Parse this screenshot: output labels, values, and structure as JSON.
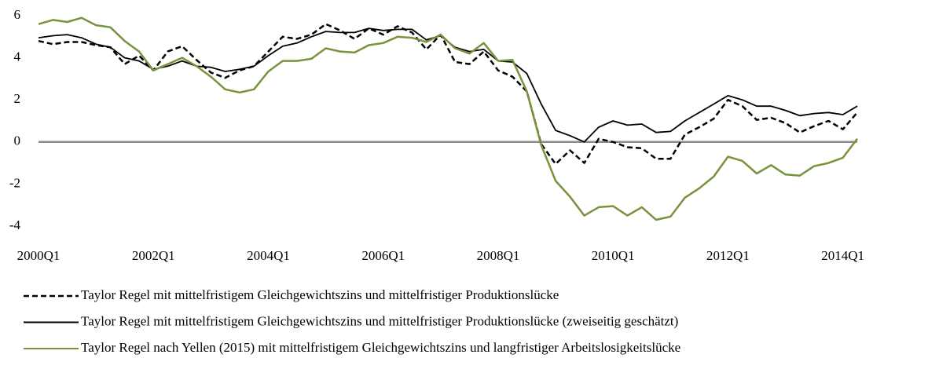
{
  "chart_data": {
    "type": "line",
    "categories": [
      "2000Q1",
      null,
      null,
      null,
      null,
      null,
      null,
      null,
      "2002Q1",
      null,
      null,
      null,
      null,
      null,
      null,
      null,
      "2004Q1",
      null,
      null,
      null,
      null,
      null,
      null,
      null,
      "2006Q1",
      null,
      null,
      null,
      null,
      null,
      null,
      null,
      "2008Q1",
      null,
      null,
      null,
      null,
      null,
      null,
      null,
      "2010Q1",
      null,
      null,
      null,
      null,
      null,
      null,
      null,
      "2012Q1",
      null,
      null,
      null,
      null,
      null,
      null,
      null,
      "2014Q1",
      null
    ],
    "ylim": [
      -4,
      6
    ],
    "yticks": [
      -4,
      -2,
      0,
      2,
      4,
      6
    ],
    "series": [
      {
        "name": "Taylor Regel mit mittelfristigem Gleichgewichtszins und mittelfristiger Produktionslücke",
        "color": "#000000",
        "style": "dashed",
        "values": [
          4.8,
          4.65,
          4.75,
          4.75,
          4.6,
          4.5,
          3.7,
          4.1,
          3.4,
          4.3,
          4.55,
          3.9,
          3.3,
          3.05,
          3.4,
          3.6,
          4.3,
          5.0,
          4.9,
          5.1,
          5.6,
          5.3,
          4.9,
          5.4,
          5.1,
          5.5,
          5.2,
          4.4,
          5.1,
          3.8,
          3.7,
          4.3,
          3.4,
          3.1,
          2.4,
          -0.1,
          -1.05,
          -0.4,
          -1.0,
          0.15,
          0.0,
          -0.25,
          -0.3,
          -0.8,
          -0.8,
          0.35,
          0.7,
          1.1,
          2.0,
          1.7,
          1.05,
          1.15,
          0.9,
          0.45,
          0.75,
          1.0,
          0.6,
          1.4
        ]
      },
      {
        "name": "Taylor Regel mit mittelfristigem Gleichgewichtszins und mittelfristiger Produktionslücke (zweiseitig geschätzt)",
        "color": "#000000",
        "style": "solid",
        "values": [
          4.95,
          5.05,
          5.1,
          4.95,
          4.65,
          4.5,
          4.0,
          3.85,
          3.45,
          3.6,
          3.85,
          3.6,
          3.55,
          3.35,
          3.45,
          3.6,
          4.1,
          4.55,
          4.7,
          5.0,
          5.25,
          5.2,
          5.2,
          5.4,
          5.3,
          5.35,
          5.35,
          4.85,
          5.05,
          4.5,
          4.3,
          4.4,
          3.85,
          3.8,
          3.25,
          1.8,
          0.55,
          0.3,
          0.0,
          0.7,
          1.0,
          0.8,
          0.85,
          0.45,
          0.5,
          1.0,
          1.4,
          1.8,
          2.2,
          2.0,
          1.7,
          1.7,
          1.5,
          1.25,
          1.35,
          1.4,
          1.3,
          1.7
        ]
      },
      {
        "name": "Taylor Regel nach Yellen (2015) mit mittelfristigem Gleichgewichtszins und langfristiger Arbeitslosigkeitslücke",
        "color": "#77933c",
        "style": "solid",
        "values": [
          5.6,
          5.8,
          5.7,
          5.9,
          5.55,
          5.45,
          4.8,
          4.3,
          3.4,
          3.7,
          4.0,
          3.6,
          3.1,
          2.5,
          2.35,
          2.5,
          3.35,
          3.85,
          3.85,
          3.95,
          4.45,
          4.3,
          4.25,
          4.6,
          4.7,
          5.0,
          4.95,
          4.75,
          5.1,
          4.45,
          4.2,
          4.7,
          3.85,
          3.9,
          2.4,
          -0.15,
          -1.85,
          -2.6,
          -3.5,
          -3.1,
          -3.05,
          -3.5,
          -3.1,
          -3.7,
          -3.55,
          -2.65,
          -2.2,
          -1.65,
          -0.7,
          -0.9,
          -1.5,
          -1.1,
          -1.55,
          -1.6,
          -1.15,
          -1.0,
          -0.75,
          0.15
        ]
      }
    ]
  }
}
